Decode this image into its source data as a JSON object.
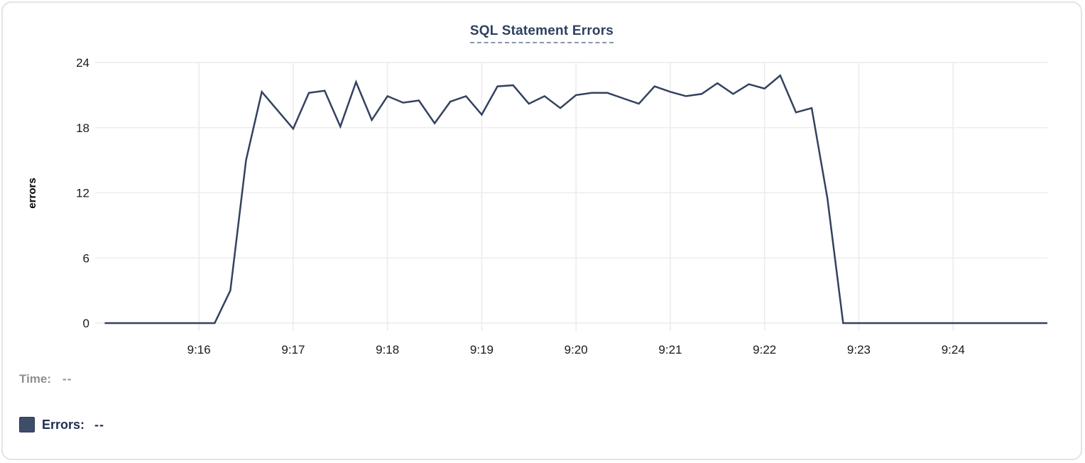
{
  "card": {
    "title": "SQL Statement Errors"
  },
  "tooltip": {
    "time_label": "Time:",
    "time_value": "--",
    "errors_label": "Errors:",
    "errors_value": "--"
  },
  "colors": {
    "line": "#34425f",
    "grid": "#ececec",
    "tick_text": "#1a1a1a",
    "title": "#2f4160",
    "title_underline": "#8a96ab",
    "time_label": "#8f8f8f",
    "errors_label": "#1f2e52",
    "swatch_fill": "#3e4d6a",
    "swatch_border": "#2b3854",
    "card_border": "#e4e4e6"
  },
  "chart_data": {
    "type": "line",
    "title": "SQL Statement Errors",
    "xlabel": "",
    "ylabel": "errors",
    "ylim": [
      0,
      24
    ],
    "y_ticks": [
      0,
      6,
      12,
      18,
      24
    ],
    "x_ticks": [
      "9:16",
      "9:17",
      "9:18",
      "9:19",
      "9:20",
      "9:21",
      "9:22",
      "9:23",
      "9:24"
    ],
    "x_range": [
      "9:15:00",
      "9:25:00"
    ],
    "grid": true,
    "legend_position": "bottom-left",
    "series": [
      {
        "name": "Errors",
        "times": [
          "9:15:00",
          "9:15:10",
          "9:15:20",
          "9:15:30",
          "9:15:40",
          "9:15:50",
          "9:16:00",
          "9:16:10",
          "9:16:20",
          "9:16:30",
          "9:16:40",
          "9:16:50",
          "9:17:00",
          "9:17:10",
          "9:17:20",
          "9:17:30",
          "9:17:40",
          "9:17:50",
          "9:18:00",
          "9:18:10",
          "9:18:20",
          "9:18:30",
          "9:18:40",
          "9:18:50",
          "9:19:00",
          "9:19:10",
          "9:19:20",
          "9:19:30",
          "9:19:40",
          "9:19:50",
          "9:20:00",
          "9:20:10",
          "9:20:20",
          "9:20:30",
          "9:20:40",
          "9:20:50",
          "9:21:00",
          "9:21:10",
          "9:21:20",
          "9:21:30",
          "9:21:40",
          "9:21:50",
          "9:22:00",
          "9:22:10",
          "9:22:20",
          "9:22:30",
          "9:22:40",
          "9:22:50",
          "9:23:00",
          "9:23:10",
          "9:23:20",
          "9:23:30",
          "9:23:40",
          "9:23:50",
          "9:24:00",
          "9:24:10",
          "9:24:20",
          "9:24:30",
          "9:24:40",
          "9:24:50",
          "9:25:00"
        ],
        "values": [
          0,
          0,
          0,
          0,
          0,
          0,
          0,
          0,
          3,
          15,
          21.3,
          19.6,
          17.9,
          21.2,
          21.4,
          18.1,
          22.2,
          18.7,
          20.9,
          20.3,
          20.5,
          18.4,
          20.4,
          20.9,
          19.2,
          21.8,
          21.9,
          20.2,
          20.9,
          19.8,
          21.0,
          21.2,
          21.2,
          20.7,
          20.2,
          21.8,
          21.3,
          20.9,
          21.1,
          22.1,
          21.1,
          22.0,
          21.6,
          22.8,
          19.4,
          19.8,
          11.5,
          0,
          0,
          0,
          0,
          0,
          0,
          0,
          0,
          0,
          0,
          0,
          0,
          0,
          0
        ]
      }
    ]
  }
}
